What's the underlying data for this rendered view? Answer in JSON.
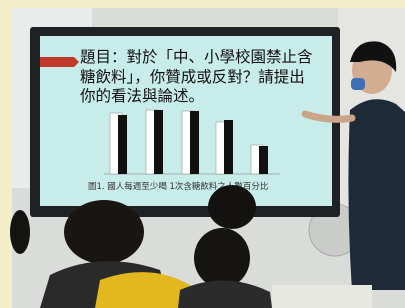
{
  "screen": {
    "title_lines": [
      "題目：對於「中、小學校園禁止含",
      "糖飲料」，你贊成或反對？請提出",
      "你的看法與論述。"
    ],
    "caption": "圖1. 國人每週至少喝 1次含糖飲料之人數百分比"
  }
}
